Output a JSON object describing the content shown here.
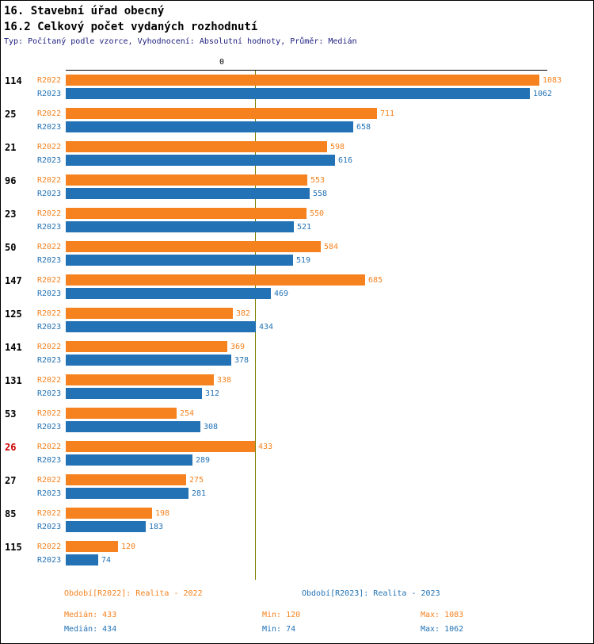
{
  "title": "16. Stavební úřad obecný",
  "subtitle": "16.2 Celkový počet vydaných rozhodnutí",
  "meta": "Typ: Počítaný podle vzorce, Vyhodnocení: Absolutní hodnoty, Průměr: Medián",
  "axis": {
    "zero_label": "0"
  },
  "colors": {
    "r2022": "#F5821F",
    "r2023": "#2272B5",
    "median_line": "#808000",
    "highlight": "#CC0000",
    "meta_text": "#202080"
  },
  "chart_data": {
    "type": "bar",
    "orientation": "horizontal",
    "categories": [
      "114",
      "25",
      "21",
      "96",
      "23",
      "50",
      "147",
      "125",
      "141",
      "131",
      "53",
      "26",
      "27",
      "85",
      "115"
    ],
    "highlighted_category": "26",
    "series": [
      {
        "name": "R2022",
        "color": "#F5821F",
        "values": [
          1083,
          711,
          598,
          553,
          550,
          584,
          685,
          382,
          369,
          338,
          254,
          433,
          275,
          198,
          120
        ]
      },
      {
        "name": "R2023",
        "color": "#2272B5",
        "values": [
          1062,
          658,
          616,
          558,
          521,
          519,
          469,
          434,
          378,
          312,
          308,
          289,
          281,
          183,
          74
        ]
      }
    ],
    "xlim": [
      0,
      1100
    ],
    "grid": false,
    "legend_position": "bottom",
    "median_lines": [
      433,
      434
    ],
    "stats": {
      "R2022": {
        "median": 433,
        "min": 120,
        "max": 1083
      },
      "R2023": {
        "median": 434,
        "min": 74,
        "max": 1062
      }
    }
  },
  "legend": {
    "r2022_label": "Období[R2022]: Realita - 2022",
    "r2023_label": "Období[R2023]: Realita - 2023"
  },
  "stats_text": {
    "r2022": {
      "median": "Medián: 433",
      "min": "Min: 120",
      "max": "Max: 1083"
    },
    "r2023": {
      "median": "Medián: 434",
      "min": "Min: 74",
      "max": "Max: 1062"
    }
  }
}
